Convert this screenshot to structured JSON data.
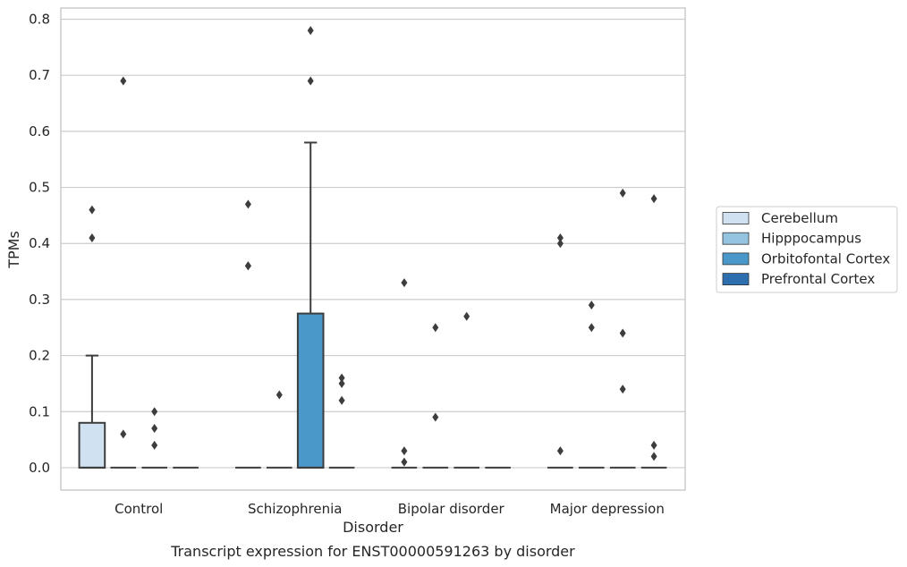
{
  "chart_data": {
    "type": "box",
    "title": "",
    "caption": "Transcript expression for ENST00000591263 by disorder",
    "xlabel": "Disorder",
    "ylabel": "TPMs",
    "ylim": [
      -0.04,
      0.82
    ],
    "yticks": [
      0.0,
      0.1,
      0.2,
      0.3,
      0.4,
      0.5,
      0.6,
      0.7,
      0.8
    ],
    "ytick_labels": [
      "0.0",
      "0.1",
      "0.2",
      "0.3",
      "0.4",
      "0.5",
      "0.6",
      "0.7",
      "0.8"
    ],
    "grid": "horizontal",
    "legend_position": "right",
    "categories": [
      "Control",
      "Schizophrenia",
      "Bipolar disorder",
      "Major depression"
    ],
    "series": [
      {
        "name": "Cerebellum",
        "color": "#d0e1f2",
        "boxes": [
          {
            "q1": 0.0,
            "median": 0.0,
            "q3": 0.08,
            "whisker_low": 0.0,
            "whisker_high": 0.2,
            "outliers": [
              0.41,
              0.46
            ]
          },
          {
            "q1": 0.0,
            "median": 0.0,
            "q3": 0.0,
            "whisker_low": 0.0,
            "whisker_high": 0.0,
            "outliers": [
              0.36,
              0.36,
              0.47
            ]
          },
          {
            "q1": 0.0,
            "median": 0.0,
            "q3": 0.0,
            "whisker_low": 0.0,
            "whisker_high": 0.0,
            "outliers": [
              0.01,
              0.03,
              0.33
            ]
          },
          {
            "q1": 0.0,
            "median": 0.0,
            "q3": 0.0,
            "whisker_low": 0.0,
            "whisker_high": 0.0,
            "outliers": [
              0.03,
              0.4,
              0.41
            ]
          }
        ]
      },
      {
        "name": "Hipppocampus",
        "color": "#94c4df",
        "boxes": [
          {
            "q1": 0.0,
            "median": 0.0,
            "q3": 0.0,
            "whisker_low": 0.0,
            "whisker_high": 0.0,
            "outliers": [
              0.06,
              0.69
            ]
          },
          {
            "q1": 0.0,
            "median": 0.0,
            "q3": 0.0,
            "whisker_low": 0.0,
            "whisker_high": 0.0,
            "outliers": [
              0.13
            ]
          },
          {
            "q1": 0.0,
            "median": 0.0,
            "q3": 0.0,
            "whisker_low": 0.0,
            "whisker_high": 0.0,
            "outliers": [
              0.09,
              0.25
            ]
          },
          {
            "q1": 0.0,
            "median": 0.0,
            "q3": 0.0,
            "whisker_low": 0.0,
            "whisker_high": 0.0,
            "outliers": [
              0.25,
              0.29
            ]
          }
        ]
      },
      {
        "name": "Orbitofontal Cortex",
        "color": "#4a98c9",
        "boxes": [
          {
            "q1": 0.0,
            "median": 0.0,
            "q3": 0.0,
            "whisker_low": 0.0,
            "whisker_high": 0.0,
            "outliers": [
              0.04,
              0.07,
              0.1
            ]
          },
          {
            "q1": 0.0,
            "median": 0.0,
            "q3": 0.275,
            "whisker_low": 0.0,
            "whisker_high": 0.58,
            "outliers": [
              0.69,
              0.78
            ]
          },
          {
            "q1": 0.0,
            "median": 0.0,
            "q3": 0.0,
            "whisker_low": 0.0,
            "whisker_high": 0.0,
            "outliers": [
              0.27
            ]
          },
          {
            "q1": 0.0,
            "median": 0.0,
            "q3": 0.0,
            "whisker_low": 0.0,
            "whisker_high": 0.0,
            "outliers": [
              0.14,
              0.24,
              0.49
            ]
          }
        ]
      },
      {
        "name": "Prefrontal Cortex",
        "color": "#2d6fae",
        "boxes": [
          {
            "q1": 0.0,
            "median": 0.0,
            "q3": 0.0,
            "whisker_low": 0.0,
            "whisker_high": 0.0,
            "outliers": []
          },
          {
            "q1": 0.0,
            "median": 0.0,
            "q3": 0.0,
            "whisker_low": 0.0,
            "whisker_high": 0.0,
            "outliers": [
              0.12,
              0.15,
              0.16
            ]
          },
          {
            "q1": 0.0,
            "median": 0.0,
            "q3": 0.0,
            "whisker_low": 0.0,
            "whisker_high": 0.0,
            "outliers": []
          },
          {
            "q1": 0.0,
            "median": 0.0,
            "q3": 0.0,
            "whisker_low": 0.0,
            "whisker_high": 0.0,
            "outliers": [
              0.02,
              0.04,
              0.48
            ]
          }
        ]
      }
    ]
  }
}
